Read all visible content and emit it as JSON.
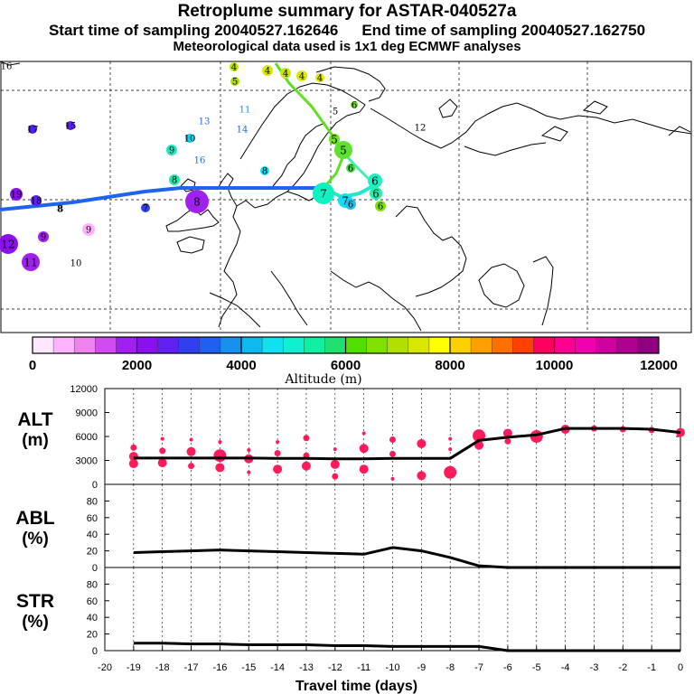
{
  "title": {
    "line1": "Retroplume summary for ASTAR-040527a",
    "start": "Start time of sampling 20040527.162646",
    "end": "End time of sampling 20040527.162750",
    "line3": "Meteorological data used is 1x1 deg ECMWF analyses"
  },
  "colorbar": {
    "label": "Altitude (m)",
    "ticks": [
      "0",
      "2000",
      "4000",
      "6000",
      "8000",
      "10000",
      "12000"
    ],
    "colors": [
      "#ffe6ff",
      "#ffb3ff",
      "#ee82ee",
      "#d24bf0",
      "#a020f0",
      "#8a10f0",
      "#6020f0",
      "#3040f0",
      "#2060f0",
      "#1890f0",
      "#10b8f0",
      "#10e0f0",
      "#10f0d0",
      "#10f0a0",
      "#20e070",
      "#50e000",
      "#80e000",
      "#b0e000",
      "#d8e800",
      "#ffff00",
      "#ffd000",
      "#ffa000",
      "#ff7000",
      "#ff4000",
      "#ff0060",
      "#ff0090",
      "#f000b0",
      "#d000a0",
      "#b00090",
      "#900080"
    ]
  },
  "map": {
    "labels": [
      {
        "t": "16"
      },
      {
        "t": "4"
      },
      {
        "t": "4"
      },
      {
        "t": "4"
      },
      {
        "t": "4"
      },
      {
        "t": "4"
      },
      {
        "t": "5"
      },
      {
        "t": "11"
      },
      {
        "t": "5"
      },
      {
        "t": "6"
      },
      {
        "t": "17"
      },
      {
        "t": "15"
      },
      {
        "t": "13"
      },
      {
        "t": "14"
      },
      {
        "t": "10"
      },
      {
        "t": "9"
      },
      {
        "t": "16"
      },
      {
        "t": "5"
      },
      {
        "t": "5"
      },
      {
        "t": "12"
      },
      {
        "t": "8"
      },
      {
        "t": "8"
      },
      {
        "t": "6"
      },
      {
        "t": "6"
      },
      {
        "t": "7"
      },
      {
        "t": "7"
      },
      {
        "t": "6"
      },
      {
        "t": "6"
      },
      {
        "t": "6"
      },
      {
        "t": "7"
      },
      {
        "t": "8"
      },
      {
        "t": "19"
      },
      {
        "t": "18"
      },
      {
        "t": "8"
      },
      {
        "t": "8"
      },
      {
        "t": "9"
      },
      {
        "t": "9"
      },
      {
        "t": "12"
      },
      {
        "t": "11"
      },
      {
        "t": "10"
      }
    ]
  },
  "chart_data": [
    {
      "type": "scatter",
      "panel": "ALT",
      "ylabel": "ALT\n(m)",
      "ylabel_lines": [
        "ALT",
        "(m)"
      ],
      "ylim": [
        0,
        12000
      ],
      "yticks": [
        "0",
        "3000",
        "6000",
        "9000",
        "12000"
      ],
      "xlim": [
        -20,
        0
      ],
      "line": {
        "x": [
          -19,
          -18,
          -17,
          -16,
          -15,
          -14,
          -13,
          -12,
          -11,
          -10,
          -9,
          -8,
          -7,
          -6,
          -5,
          -4,
          -3,
          -2,
          -1,
          0
        ],
        "y": [
          3300,
          3300,
          3300,
          3300,
          3300,
          3250,
          3250,
          3200,
          3200,
          3250,
          3250,
          3250,
          5500,
          5900,
          6200,
          7000,
          7000,
          7000,
          6900,
          6500
        ]
      },
      "points": [
        {
          "x": -19,
          "y": 4600,
          "s": 2
        },
        {
          "x": -19,
          "y": 3500,
          "s": 3
        },
        {
          "x": -19,
          "y": 2600,
          "s": 3
        },
        {
          "x": -18,
          "y": 5700,
          "s": 1
        },
        {
          "x": -18,
          "y": 4200,
          "s": 2
        },
        {
          "x": -18,
          "y": 2700,
          "s": 3
        },
        {
          "x": -17,
          "y": 5600,
          "s": 1
        },
        {
          "x": -17,
          "y": 4100,
          "s": 3
        },
        {
          "x": -17,
          "y": 2300,
          "s": 2
        },
        {
          "x": -16,
          "y": 5300,
          "s": 1
        },
        {
          "x": -16,
          "y": 3600,
          "s": 4
        },
        {
          "x": -16,
          "y": 2100,
          "s": 3
        },
        {
          "x": -15,
          "y": 4300,
          "s": 1
        },
        {
          "x": -15,
          "y": 3200,
          "s": 3
        },
        {
          "x": -15,
          "y": 1500,
          "s": 1
        },
        {
          "x": -14,
          "y": 5300,
          "s": 1
        },
        {
          "x": -14,
          "y": 3900,
          "s": 2
        },
        {
          "x": -14,
          "y": 1900,
          "s": 3
        },
        {
          "x": -13,
          "y": 5800,
          "s": 2
        },
        {
          "x": -13,
          "y": 3600,
          "s": 2
        },
        {
          "x": -13,
          "y": 2300,
          "s": 3
        },
        {
          "x": -12,
          "y": 4400,
          "s": 1
        },
        {
          "x": -12,
          "y": 2500,
          "s": 3
        },
        {
          "x": -12,
          "y": 1000,
          "s": 2
        },
        {
          "x": -11,
          "y": 6400,
          "s": 1
        },
        {
          "x": -11,
          "y": 4500,
          "s": 3
        },
        {
          "x": -11,
          "y": 1900,
          "s": 3
        },
        {
          "x": -10,
          "y": 5600,
          "s": 2
        },
        {
          "x": -10,
          "y": 3800,
          "s": 2
        },
        {
          "x": -10,
          "y": 700,
          "s": 1
        },
        {
          "x": -9,
          "y": 5100,
          "s": 3
        },
        {
          "x": -9,
          "y": 1100,
          "s": 3
        },
        {
          "x": -8,
          "y": 5700,
          "s": 1
        },
        {
          "x": -8,
          "y": 4400,
          "s": 1
        },
        {
          "x": -8,
          "y": 1500,
          "s": 4
        },
        {
          "x": -7,
          "y": 6100,
          "s": 4
        },
        {
          "x": -7,
          "y": 4900,
          "s": 3
        },
        {
          "x": -6,
          "y": 6400,
          "s": 3
        },
        {
          "x": -6,
          "y": 5400,
          "s": 2
        },
        {
          "x": -5,
          "y": 6000,
          "s": 4
        },
        {
          "x": -4,
          "y": 6900,
          "s": 3
        },
        {
          "x": -3,
          "y": 7000,
          "s": 2
        },
        {
          "x": -2,
          "y": 6900,
          "s": 2
        },
        {
          "x": -1,
          "y": 6800,
          "s": 2
        },
        {
          "x": 0,
          "y": 6500,
          "s": 3
        }
      ]
    },
    {
      "type": "line",
      "panel": "ABL",
      "ylabel_lines": [
        "ABL",
        "(%)"
      ],
      "ylim": [
        0,
        100
      ],
      "yticks": [
        "0",
        "20",
        "40",
        "60",
        "80"
      ],
      "x": [
        -19,
        -18,
        -17,
        -16,
        -15,
        -14,
        -13,
        -12,
        -11,
        -10,
        -9,
        -8,
        -7,
        -6,
        -5,
        -4,
        -3,
        -2,
        -1,
        0
      ],
      "y": [
        18,
        19,
        20,
        21,
        20,
        19,
        18,
        17,
        16,
        24,
        20,
        12,
        2,
        0,
        0,
        0,
        0,
        0,
        0,
        0
      ]
    },
    {
      "type": "line",
      "panel": "STR",
      "ylabel_lines": [
        "STR",
        "(%)"
      ],
      "ylim": [
        0,
        100
      ],
      "yticks": [
        "0",
        "20",
        "40",
        "60",
        "80"
      ],
      "xlabel": "Travel time (days)",
      "xticks": [
        "-20",
        "-19",
        "-18",
        "-17",
        "-16",
        "-15",
        "-14",
        "-13",
        "-12",
        "-11",
        "-10",
        "-9",
        "-8",
        "-7",
        "-6",
        "-5",
        "-4",
        "-3",
        "-2",
        "-1",
        "0"
      ],
      "x": [
        -19,
        -18,
        -17,
        -16,
        -15,
        -14,
        -13,
        -12,
        -11,
        -10,
        -9,
        -8,
        -7,
        -6,
        -5,
        -4,
        -3,
        -2,
        -1,
        0
      ],
      "y": [
        9,
        9,
        8,
        8,
        7,
        7,
        7,
        6,
        6,
        5,
        5,
        5,
        5,
        0,
        0,
        0,
        0,
        0,
        0,
        0
      ]
    }
  ]
}
